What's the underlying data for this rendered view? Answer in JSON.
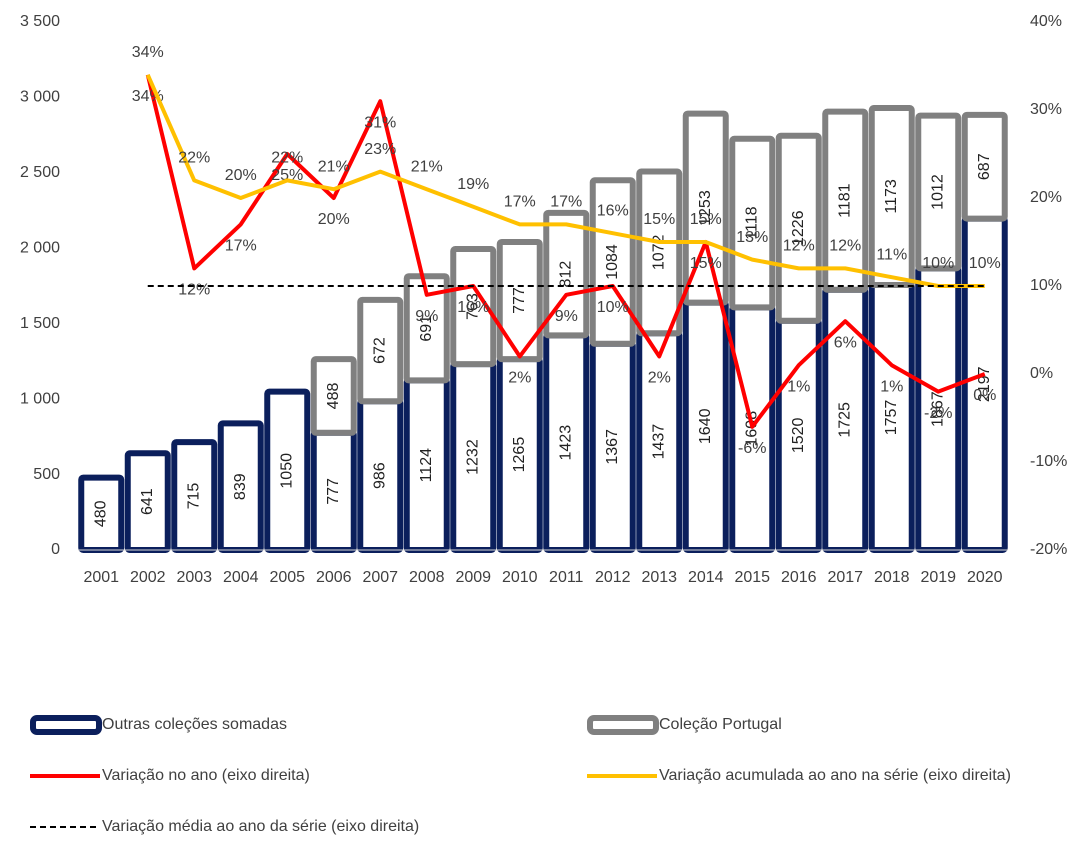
{
  "chart_data": {
    "type": "bar",
    "categories": [
      "2001",
      "2002",
      "2003",
      "2004",
      "2005",
      "2006",
      "2007",
      "2008",
      "2009",
      "2010",
      "2011",
      "2012",
      "2013",
      "2014",
      "2015",
      "2016",
      "2017",
      "2018",
      "2019",
      "2020"
    ],
    "ylim": [
      0,
      3500
    ],
    "yticks": [
      0,
      500,
      {
        "value": 1000,
        "label": "1 000"
      },
      {
        "value": 1500,
        "label": "1 500"
      },
      {
        "value": 2000,
        "label": "2 000"
      },
      {
        "value": 2500,
        "label": "2 500"
      },
      {
        "value": 3000,
        "label": "3 000"
      },
      {
        "value": 3500,
        "label": "3 500"
      }
    ],
    "y2lim": [
      -20,
      40
    ],
    "y2ticks": [
      {
        "value": -20,
        "label": "-20%"
      },
      {
        "value": -10,
        "label": "-10%"
      },
      {
        "value": 0,
        "label": "0%"
      },
      {
        "value": 10,
        "label": "10%"
      },
      {
        "value": 20,
        "label": "20%"
      },
      {
        "value": 30,
        "label": "30%"
      },
      {
        "value": 40,
        "label": "40%"
      }
    ],
    "series": [
      {
        "name": "Outras coleções somadas",
        "kind": "bar",
        "color": "#0b1f5c",
        "values": [
          480,
          641,
          715,
          839,
          1050,
          777,
          986,
          1124,
          1232,
          1265,
          1423,
          1367,
          1437,
          1640,
          1608,
          1520,
          1725,
          1757,
          1867,
          2197
        ]
      },
      {
        "name": "Coleção Portugal",
        "kind": "bar",
        "color": "#808080",
        "values": [
          null,
          null,
          null,
          null,
          null,
          488,
          672,
          691,
          763,
          777,
          812,
          1084,
          1072,
          1253,
          1118,
          1226,
          1181,
          1173,
          1012,
          687
        ]
      },
      {
        "name": "Variação no ano (eixo direita)",
        "kind": "line",
        "axis": "y2",
        "color": "#ff0000",
        "labelpos": "below",
        "values": [
          null,
          34,
          12,
          17,
          25,
          20,
          31,
          9,
          10,
          2,
          9,
          10,
          2,
          15,
          -6,
          1,
          6,
          1,
          -2,
          0
        ],
        "value_labels": [
          null,
          "34%",
          "12%",
          "17%",
          "25%",
          "20%",
          "31%",
          "9%",
          "10%",
          "2%",
          "9%",
          "10%",
          "2%",
          "15%",
          "-6%",
          "1%",
          "6%",
          "1%",
          "-2%",
          "0%"
        ]
      },
      {
        "name": "Variação acumulada ao ano na série (eixo direita)",
        "kind": "line",
        "axis": "y2",
        "color": "#ffc000",
        "labelpos": "above",
        "values": [
          null,
          34,
          22,
          20,
          22,
          21,
          23,
          21,
          19,
          17,
          17,
          16,
          15,
          15,
          13,
          12,
          12,
          11,
          10,
          10
        ],
        "value_labels": [
          null,
          "34%",
          "22%",
          "20%",
          "22%",
          "21%",
          "23%",
          "21%",
          "19%",
          "17%",
          "17%",
          "16%",
          "15%",
          "15%",
          "13%",
          "12%",
          "12%",
          "11%",
          "10%",
          "10%"
        ]
      },
      {
        "name": "Variação média ao ano da série (eixo direita)",
        "kind": "dash",
        "axis": "y2",
        "color": "#000000",
        "values": [
          null,
          10,
          10,
          10,
          10,
          10,
          10,
          10,
          10,
          10,
          10,
          10,
          10,
          10,
          10,
          10,
          10,
          10,
          10,
          10
        ]
      }
    ]
  }
}
